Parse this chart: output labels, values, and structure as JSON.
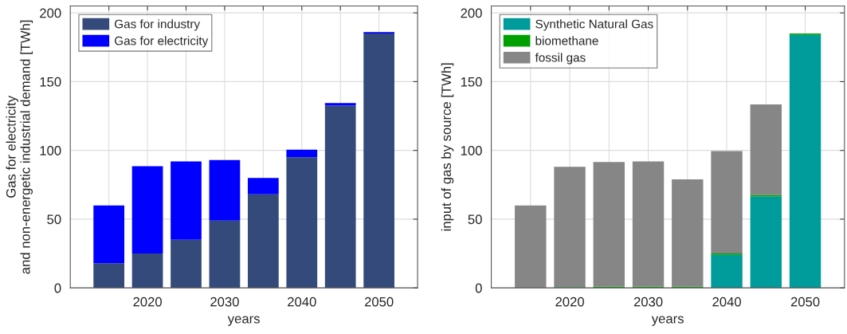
{
  "chart_data": [
    {
      "type": "bar",
      "stacked": true,
      "x": [
        2015,
        2020,
        2025,
        2030,
        2035,
        2040,
        2045,
        2050
      ],
      "series": [
        {
          "name": "Gas for industry",
          "color": "#344a7a",
          "values": [
            18,
            25,
            35,
            49,
            68,
            95,
            132.5,
            185
          ]
        },
        {
          "name": "Gas for electricity",
          "color": "#0000ff",
          "values": [
            42,
            63.5,
            57,
            44,
            12,
            5.5,
            2,
            1
          ]
        }
      ],
      "xlim": [
        2010,
        2055
      ],
      "ylim": [
        0,
        205
      ],
      "xticks": [
        {
          "value": 2015,
          "label": null
        },
        2020,
        {
          "value": 2025,
          "label": null
        },
        2030,
        {
          "value": 2035,
          "label": null
        },
        2040,
        {
          "value": 2045,
          "label": null
        },
        2050
      ],
      "yticks": [
        0,
        50,
        100,
        150,
        200
      ],
      "xlabel": "years",
      "ylabel": "Gas for electricity\nand non-energetic industrial demand [TWh]",
      "grid": true,
      "legend": "top left"
    },
    {
      "type": "bar",
      "stacked": true,
      "x": [
        2015,
        2020,
        2025,
        2030,
        2035,
        2040,
        2045,
        2050
      ],
      "series": [
        {
          "name": "Synthetic Natural Gas",
          "color": "#009b9b",
          "values": [
            0,
            0,
            0,
            0,
            0,
            24,
            66.5,
            184
          ]
        },
        {
          "name": "biomethane",
          "color": "#00a000",
          "values": [
            0,
            0.5,
            1,
            1,
            1,
            1,
            1,
            1
          ]
        },
        {
          "name": "fossil gas",
          "color": "#868686",
          "values": [
            60,
            87.5,
            90.5,
            91,
            78,
            74.5,
            66,
            0
          ]
        }
      ],
      "xlim": [
        2010,
        2055
      ],
      "ylim": [
        0,
        205
      ],
      "xticks": [
        {
          "value": 2015,
          "label": null
        },
        2020,
        {
          "value": 2025,
          "label": null
        },
        2030,
        {
          "value": 2035,
          "label": null
        },
        2040,
        {
          "value": 2045,
          "label": null
        },
        2050
      ],
      "yticks": [
        0,
        50,
        100,
        150,
        200
      ],
      "xlabel": "years",
      "ylabel": "input of gas by source [TWh]",
      "grid": true,
      "legend": "top left"
    }
  ]
}
